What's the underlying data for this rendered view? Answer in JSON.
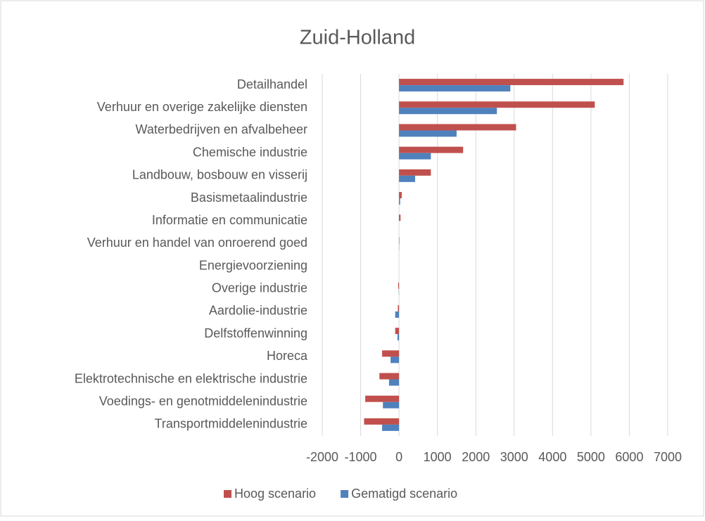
{
  "chart_data": {
    "type": "hbar",
    "title": "Zuid-Holland",
    "categories": [
      "Detailhandel",
      "Verhuur en overige zakelijke diensten",
      "Waterbedrijven en afvalbeheer",
      "Chemische industrie",
      "Landbouw, bosbouw en visserij",
      "Basismetaalindustrie",
      "Informatie en communicatie",
      "Verhuur en handel van onroerend goed",
      "Energievoorziening",
      "Overige industrie",
      "Aardolie-industrie",
      "Delfstoffenwinning",
      "Horeca",
      "Elektrotechnische en elektrische industrie",
      "Voedings- en genotmiddelenindustrie",
      "Transportmiddelenindustrie"
    ],
    "series": [
      {
        "name": "Hoog scenario",
        "color": "#c0504d",
        "values": [
          5850,
          5100,
          3050,
          1670,
          830,
          70,
          40,
          10,
          0,
          -20,
          -30,
          -100,
          -440,
          -510,
          -880,
          -910
        ]
      },
      {
        "name": "Gematigd scenario",
        "color": "#4f81bd",
        "values": [
          2900,
          2550,
          1500,
          830,
          420,
          30,
          0,
          5,
          0,
          -5,
          -100,
          -40,
          -220,
          -260,
          -420,
          -440
        ]
      }
    ],
    "xlim": [
      -2000,
      7000
    ],
    "xticks": [
      -2000,
      -1000,
      0,
      1000,
      2000,
      3000,
      4000,
      5000,
      6000,
      7000
    ],
    "grid": true,
    "legend": "bottom"
  }
}
